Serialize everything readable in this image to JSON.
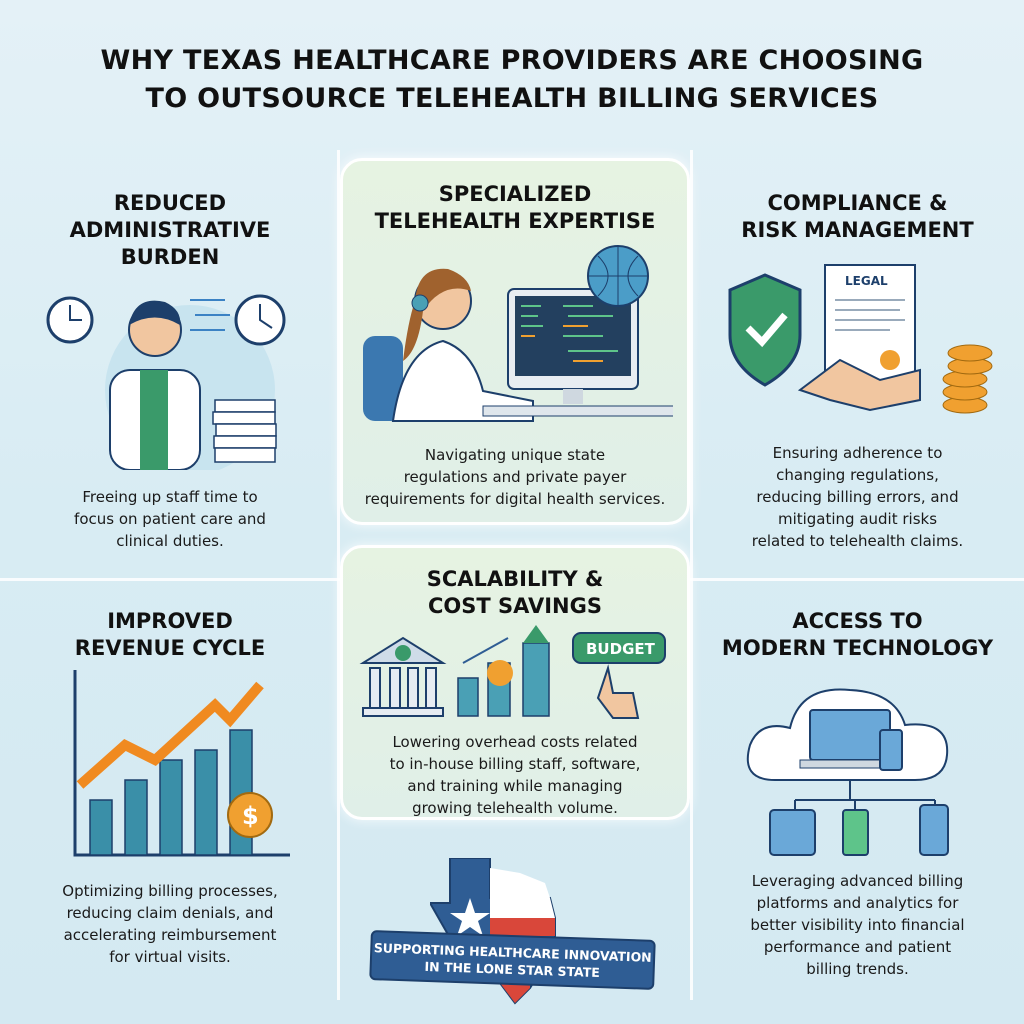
{
  "title": {
    "line1": "WHY TEXAS HEALTHCARE PROVIDERS ARE CHOOSING",
    "line2": "TO OUTSOURCE TELEHEALTH BILLING SERVICES"
  },
  "panels": [
    {
      "heading": [
        "REDUCED",
        "ADMINISTRATIVE",
        "BURDEN"
      ],
      "desc": [
        "Freeing up staff time to",
        "focus on patient care and",
        "clinical duties."
      ],
      "icon": "doctor-clocks-paperwork"
    },
    {
      "heading": [
        "SPECIALIZED",
        "TELEHEALTH EXPERTISE"
      ],
      "desc": [
        "Navigating unique state",
        "regulations and private payer",
        "requirements for digital health services."
      ],
      "icon": "agent-headset-computer-globe"
    },
    {
      "heading": [
        "COMPLIANCE &",
        "RISK MANAGEMENT"
      ],
      "desc": [
        "Ensuring adherence to",
        "changing regulations,",
        "reducing billing errors, and",
        "mitigating audit risks",
        "related to telehealth claims."
      ],
      "icon": "shield-handshake-legal",
      "legal_label": "LEGAL"
    },
    {
      "heading": [
        "IMPROVED",
        "REVENUE CYCLE"
      ],
      "desc": [
        "Optimizing billing processes,",
        "reducing claim denials, and",
        "accelerating reimbursement",
        "for virtual visits."
      ],
      "icon": "growth-chart-dollar"
    },
    {
      "heading": [
        "SCALABILITY &",
        "COST SAVINGS"
      ],
      "desc": [
        "Lowering overhead costs related",
        "to in-house billing staff, software,",
        "and training while managing",
        "growing telehealth volume."
      ],
      "icon": "bank-bars-budget",
      "budget_label": "BUDGET"
    },
    {
      "heading": [
        "ACCESS TO",
        "MODERN TECHNOLOGY"
      ],
      "desc": [
        "Leveraging advanced billing",
        "platforms and analytics for",
        "better visibility into financial",
        "performance and patient",
        "billing trends."
      ],
      "icon": "cloud-devices"
    }
  ],
  "banner": {
    "line1": "SUPPORTING HEALTHCARE INNOVATION",
    "line2": "IN THE LONE STAR STATE"
  },
  "colors": {
    "navy": "#2f5d94",
    "green": "#3a9a6a",
    "orange": "#f0a030",
    "red": "#d9473a"
  }
}
